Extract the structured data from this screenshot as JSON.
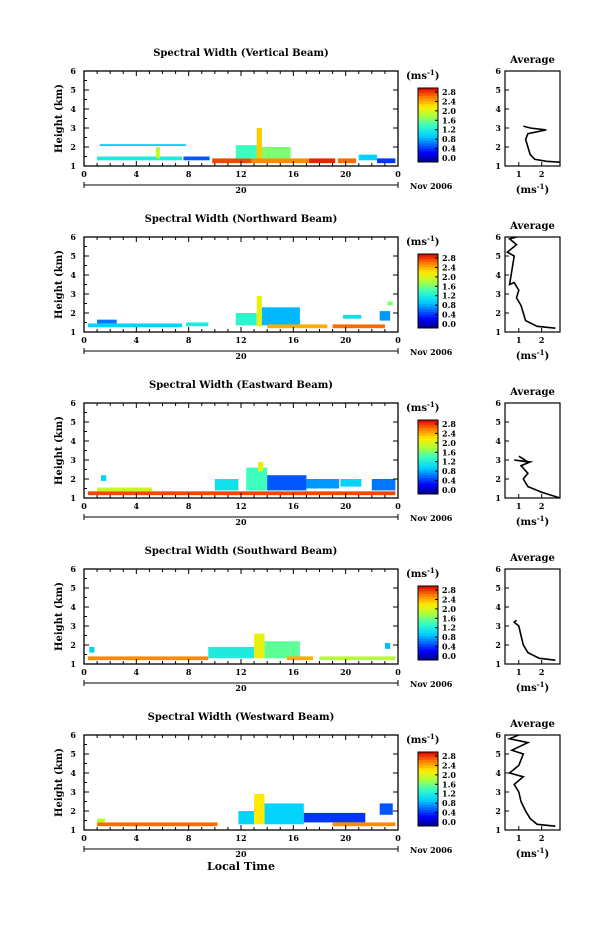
{
  "chart_data": [
    {
      "type": "heatmap",
      "title": "Spectral Width (Vertical Beam)",
      "ylabel": "Height (km)",
      "ylim": [
        1,
        6
      ],
      "xlim": [
        0,
        24
      ],
      "x_ticks": [
        "0",
        "4",
        "8",
        "12",
        "16",
        "20",
        "0"
      ],
      "date_label": "20",
      "month_label": "Nov 2006",
      "colorbar": {
        "unit": "(ms-1)",
        "ticks": [
          "2.8",
          "2.4",
          "2.0",
          "1.6",
          "1.2",
          "0.8",
          "0.4",
          "0.0"
        ],
        "range": [
          0,
          2.8
        ]
      },
      "cells": [
        {
          "x0": 1.0,
          "x1": 7.5,
          "y0": 1.3,
          "y1": 1.5,
          "v": 1.2
        },
        {
          "x0": 1.2,
          "x1": 7.8,
          "y0": 2.05,
          "y1": 2.15,
          "v": 1.0
        },
        {
          "x0": 5.5,
          "x1": 5.8,
          "y0": 1.4,
          "y1": 2.0,
          "v": 1.8
        },
        {
          "x0": 7.6,
          "x1": 9.6,
          "y0": 1.3,
          "y1": 1.5,
          "v": 0.6
        },
        {
          "x0": 9.8,
          "x1": 12.8,
          "y0": 1.15,
          "y1": 1.4,
          "v": 2.6
        },
        {
          "x0": 11.6,
          "x1": 13.6,
          "y0": 1.4,
          "y1": 2.1,
          "v": 1.4
        },
        {
          "x0": 13.2,
          "x1": 13.6,
          "y0": 1.4,
          "y1": 3.0,
          "v": 2.2
        },
        {
          "x0": 13.6,
          "x1": 15.8,
          "y0": 1.4,
          "y1": 2.0,
          "v": 1.6
        },
        {
          "x0": 12.8,
          "x1": 17.2,
          "y0": 1.15,
          "y1": 1.4,
          "v": 2.4
        },
        {
          "x0": 17.2,
          "x1": 19.2,
          "y0": 1.15,
          "y1": 1.4,
          "v": 2.7
        },
        {
          "x0": 19.4,
          "x1": 20.8,
          "y0": 1.15,
          "y1": 1.4,
          "v": 2.5
        },
        {
          "x0": 21.0,
          "x1": 22.4,
          "y0": 1.3,
          "y1": 1.6,
          "v": 1.0
        },
        {
          "x0": 22.4,
          "x1": 23.8,
          "y0": 1.15,
          "y1": 1.4,
          "v": 0.5
        }
      ],
      "average": {
        "title": "Average",
        "xlabel": "(ms-1)",
        "x_ticks": [
          "1",
          "2"
        ],
        "xlim": [
          0.4,
          2.8
        ],
        "profile": [
          [
            2.8,
            1.2
          ],
          [
            2.2,
            1.25
          ],
          [
            1.7,
            1.35
          ],
          [
            1.5,
            1.6
          ],
          [
            1.4,
            2.0
          ],
          [
            1.3,
            2.4
          ],
          [
            1.4,
            2.7
          ],
          [
            2.2,
            2.9
          ],
          [
            1.5,
            3.0
          ],
          [
            1.2,
            3.1
          ]
        ]
      }
    },
    {
      "type": "heatmap",
      "title": "Spectral Width (Northward Beam)",
      "ylabel": "Height (km)",
      "ylim": [
        1,
        6
      ],
      "xlim": [
        0,
        24
      ],
      "x_ticks": [
        "0",
        "4",
        "8",
        "12",
        "16",
        "20",
        "0"
      ],
      "date_label": "20",
      "month_label": "Nov 2006",
      "colorbar": {
        "unit": "(ms-1)",
        "ticks": [
          "2.8",
          "2.4",
          "2.0",
          "1.6",
          "1.2",
          "0.8",
          "0.4",
          "0.0"
        ],
        "range": [
          0,
          2.8
        ]
      },
      "cells": [
        {
          "x0": 0.3,
          "x1": 7.5,
          "y0": 1.25,
          "y1": 1.45,
          "v": 1.0
        },
        {
          "x0": 1.0,
          "x1": 2.5,
          "y0": 1.45,
          "y1": 1.65,
          "v": 0.7
        },
        {
          "x0": 7.8,
          "x1": 9.5,
          "y0": 1.3,
          "y1": 1.5,
          "v": 1.2
        },
        {
          "x0": 11.6,
          "x1": 13.2,
          "y0": 1.35,
          "y1": 2.0,
          "v": 1.3
        },
        {
          "x0": 13.2,
          "x1": 13.6,
          "y0": 1.3,
          "y1": 2.9,
          "v": 2.0
        },
        {
          "x0": 13.6,
          "x1": 16.5,
          "y0": 1.35,
          "y1": 2.3,
          "v": 0.9
        },
        {
          "x0": 14.0,
          "x1": 18.6,
          "y0": 1.2,
          "y1": 1.4,
          "v": 2.3
        },
        {
          "x0": 19.0,
          "x1": 23.0,
          "y0": 1.2,
          "y1": 1.4,
          "v": 2.5
        },
        {
          "x0": 19.8,
          "x1": 21.2,
          "y0": 1.7,
          "y1": 1.9,
          "v": 1.1
        },
        {
          "x0": 22.6,
          "x1": 23.4,
          "y0": 1.6,
          "y1": 2.1,
          "v": 0.8
        },
        {
          "x0": 23.2,
          "x1": 23.6,
          "y0": 2.4,
          "y1": 2.6,
          "v": 1.6
        }
      ],
      "average": {
        "title": "Average",
        "xlabel": "(ms-1)",
        "x_ticks": [
          "1",
          "2"
        ],
        "xlim": [
          0.4,
          2.8
        ],
        "profile": [
          [
            2.6,
            1.2
          ],
          [
            1.8,
            1.3
          ],
          [
            1.3,
            1.6
          ],
          [
            1.2,
            2.0
          ],
          [
            1.1,
            2.4
          ],
          [
            0.9,
            2.8
          ],
          [
            1.0,
            3.2
          ],
          [
            0.8,
            3.6
          ],
          [
            0.6,
            3.5
          ],
          [
            0.8,
            5.0
          ],
          [
            0.5,
            5.2
          ],
          [
            0.9,
            5.6
          ],
          [
            0.6,
            5.9
          ],
          [
            0.9,
            6.0
          ]
        ]
      }
    },
    {
      "type": "heatmap",
      "title": "Spectral Width (Eastward Beam)",
      "ylabel": "Height (km)",
      "ylim": [
        1,
        6
      ],
      "xlim": [
        0,
        24
      ],
      "x_ticks": [
        "0",
        "4",
        "8",
        "12",
        "16",
        "20",
        "0"
      ],
      "date_label": "20",
      "month_label": "Nov 2006",
      "colorbar": {
        "unit": "(ms-1)",
        "ticks": [
          "2.8",
          "2.4",
          "2.0",
          "1.6",
          "1.2",
          "0.8",
          "0.4",
          "0.0"
        ],
        "range": [
          0,
          2.8
        ]
      },
      "cells": [
        {
          "x0": 0.3,
          "x1": 23.8,
          "y0": 1.15,
          "y1": 1.35,
          "v": 2.6
        },
        {
          "x0": 1.0,
          "x1": 5.2,
          "y0": 1.35,
          "y1": 1.55,
          "v": 1.9
        },
        {
          "x0": 1.3,
          "x1": 1.7,
          "y0": 1.9,
          "y1": 2.2,
          "v": 1.0
        },
        {
          "x0": 10.0,
          "x1": 11.8,
          "y0": 1.4,
          "y1": 2.0,
          "v": 1.1
        },
        {
          "x0": 12.4,
          "x1": 14.0,
          "y0": 1.4,
          "y1": 2.6,
          "v": 1.4
        },
        {
          "x0": 13.3,
          "x1": 13.7,
          "y0": 2.4,
          "y1": 2.9,
          "v": 2.0
        },
        {
          "x0": 14.0,
          "x1": 17.0,
          "y0": 1.4,
          "y1": 2.2,
          "v": 0.6
        },
        {
          "x0": 17.0,
          "x1": 19.5,
          "y0": 1.5,
          "y1": 2.0,
          "v": 0.8
        },
        {
          "x0": 19.6,
          "x1": 21.2,
          "y0": 1.6,
          "y1": 2.0,
          "v": 1.0
        },
        {
          "x0": 22.0,
          "x1": 23.8,
          "y0": 1.4,
          "y1": 2.0,
          "v": 0.7
        }
      ],
      "average": {
        "title": "Average",
        "xlabel": "(ms-1)",
        "x_ticks": [
          "1",
          "2"
        ],
        "xlim": [
          0.4,
          2.8
        ],
        "profile": [
          [
            2.8,
            1.0
          ],
          [
            2.0,
            1.3
          ],
          [
            1.4,
            1.6
          ],
          [
            1.2,
            2.0
          ],
          [
            1.4,
            2.3
          ],
          [
            1.1,
            2.7
          ],
          [
            1.5,
            2.9
          ],
          [
            0.8,
            3.0
          ],
          [
            1.4,
            2.9
          ],
          [
            1.0,
            3.2
          ]
        ]
      }
    },
    {
      "type": "heatmap",
      "title": "Spectral Width (Southward Beam)",
      "ylabel": "Height (km)",
      "ylim": [
        1,
        6
      ],
      "xlim": [
        0,
        24
      ],
      "x_ticks": [
        "0",
        "4",
        "8",
        "12",
        "16",
        "20",
        "0"
      ],
      "date_label": "20",
      "month_label": "Nov 2006",
      "colorbar": {
        "unit": "(ms-1)",
        "ticks": [
          "2.8",
          "2.4",
          "2.0",
          "1.6",
          "1.2",
          "0.8",
          "0.4",
          "0.0"
        ],
        "range": [
          0,
          2.8
        ]
      },
      "cells": [
        {
          "x0": 0.3,
          "x1": 9.5,
          "y0": 1.2,
          "y1": 1.4,
          "v": 2.4
        },
        {
          "x0": 0.4,
          "x1": 0.8,
          "y0": 1.6,
          "y1": 1.9,
          "v": 1.0
        },
        {
          "x0": 9.5,
          "x1": 13.0,
          "y0": 1.3,
          "y1": 1.9,
          "v": 1.2
        },
        {
          "x0": 13.0,
          "x1": 13.8,
          "y0": 1.3,
          "y1": 2.6,
          "v": 2.0
        },
        {
          "x0": 13.8,
          "x1": 16.5,
          "y0": 1.3,
          "y1": 2.2,
          "v": 1.5
        },
        {
          "x0": 15.5,
          "x1": 17.5,
          "y0": 1.2,
          "y1": 1.4,
          "v": 2.3
        },
        {
          "x0": 18.0,
          "x1": 23.8,
          "y0": 1.2,
          "y1": 1.4,
          "v": 1.8
        },
        {
          "x0": 23.0,
          "x1": 23.4,
          "y0": 1.8,
          "y1": 2.1,
          "v": 0.9
        }
      ],
      "average": {
        "title": "Average",
        "xlabel": "(ms-1)",
        "x_ticks": [
          "1",
          "2"
        ],
        "xlim": [
          0.4,
          2.8
        ],
        "profile": [
          [
            2.6,
            1.2
          ],
          [
            1.9,
            1.3
          ],
          [
            1.4,
            1.6
          ],
          [
            1.2,
            2.0
          ],
          [
            1.1,
            2.5
          ],
          [
            1.0,
            3.0
          ],
          [
            0.8,
            3.2
          ],
          [
            0.9,
            3.3
          ]
        ]
      }
    },
    {
      "type": "heatmap",
      "title": "Spectral Width (Westward Beam)",
      "ylabel": "Height (km)",
      "ylim": [
        1,
        6
      ],
      "xlim": [
        0,
        24
      ],
      "x_ticks": [
        "0",
        "4",
        "8",
        "12",
        "16",
        "20",
        "0"
      ],
      "date_label": "20",
      "month_label": "Nov 2006",
      "x_title": "Local Time",
      "colorbar": {
        "unit": "(ms-1)",
        "ticks": [
          "2.8",
          "2.4",
          "2.0",
          "1.6",
          "1.2",
          "0.8",
          "0.4",
          "0.0"
        ],
        "range": [
          0,
          2.8
        ]
      },
      "cells": [
        {
          "x0": 1.0,
          "x1": 10.2,
          "y0": 1.2,
          "y1": 1.4,
          "v": 2.5
        },
        {
          "x0": 1.0,
          "x1": 1.6,
          "y0": 1.4,
          "y1": 1.6,
          "v": 1.8
        },
        {
          "x0": 11.8,
          "x1": 13.0,
          "y0": 1.3,
          "y1": 2.0,
          "v": 1.0
        },
        {
          "x0": 13.0,
          "x1": 13.8,
          "y0": 1.3,
          "y1": 2.9,
          "v": 2.1
        },
        {
          "x0": 13.8,
          "x1": 16.8,
          "y0": 1.3,
          "y1": 2.4,
          "v": 1.0
        },
        {
          "x0": 16.8,
          "x1": 21.5,
          "y0": 1.4,
          "y1": 1.9,
          "v": 0.5
        },
        {
          "x0": 19.0,
          "x1": 23.8,
          "y0": 1.2,
          "y1": 1.4,
          "v": 2.4
        },
        {
          "x0": 22.6,
          "x1": 23.6,
          "y0": 1.8,
          "y1": 2.4,
          "v": 0.6
        }
      ],
      "average": {
        "title": "Average",
        "xlabel": "(ms-1)",
        "x_ticks": [
          "1",
          "2"
        ],
        "xlim": [
          0.4,
          2.8
        ],
        "profile": [
          [
            2.6,
            1.2
          ],
          [
            1.8,
            1.3
          ],
          [
            1.5,
            1.6
          ],
          [
            1.3,
            2.0
          ],
          [
            1.1,
            2.5
          ],
          [
            1.0,
            3.0
          ],
          [
            0.8,
            3.4
          ],
          [
            1.2,
            3.8
          ],
          [
            0.6,
            4.0
          ],
          [
            1.0,
            4.4
          ],
          [
            1.2,
            5.0
          ],
          [
            0.7,
            5.2
          ],
          [
            1.4,
            5.6
          ],
          [
            0.6,
            5.8
          ],
          [
            1.0,
            6.0
          ]
        ]
      }
    }
  ]
}
